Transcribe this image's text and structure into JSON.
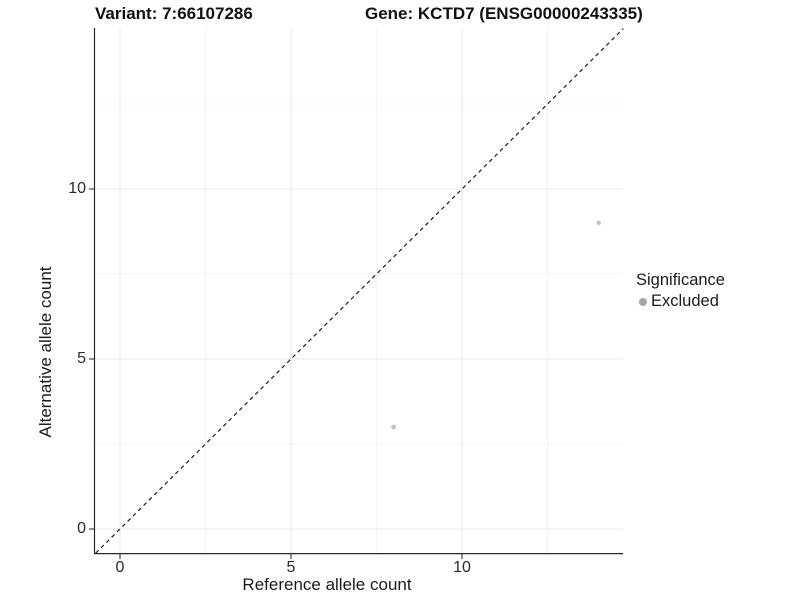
{
  "titles": {
    "variant": "Variant: 7:66107286",
    "gene": "Gene: KCTD7 (ENSG00000243335)"
  },
  "chart_data": {
    "type": "scatter",
    "xlabel": "Reference allele count",
    "ylabel": "Alternative allele count",
    "x_tick_labels": [
      "0",
      "5",
      "10"
    ],
    "x_tick_values": [
      0,
      5,
      10
    ],
    "y_tick_labels": [
      "0",
      "5",
      "10"
    ],
    "y_tick_values": [
      0,
      5,
      10
    ],
    "minor_tick_values": [
      2.5,
      7.5,
      12.5
    ],
    "xlim": [
      -0.73,
      14.72
    ],
    "ylim": [
      -0.71,
      14.74
    ],
    "grid": true,
    "identity_line": {
      "slope": 1,
      "intercept": 0,
      "style": "dashed"
    },
    "series": [
      {
        "name": "Excluded",
        "color": "#c4c4c4",
        "points": [
          {
            "x": 8,
            "y": 3,
            "size": 2.4
          },
          {
            "x": 14,
            "y": 9,
            "size": 2.2
          }
        ]
      }
    ],
    "legend": {
      "title": "Significance",
      "position": "right",
      "items": [
        {
          "label": "Excluded",
          "color": "#a6a6a6"
        }
      ]
    }
  },
  "style_colors": {
    "axis_line": "#2a2a2a",
    "major_grid": "#e9e9e9",
    "minor_grid": "#f4f4f4",
    "dashed_line": "#1f1f1f",
    "tick": "#333333"
  }
}
